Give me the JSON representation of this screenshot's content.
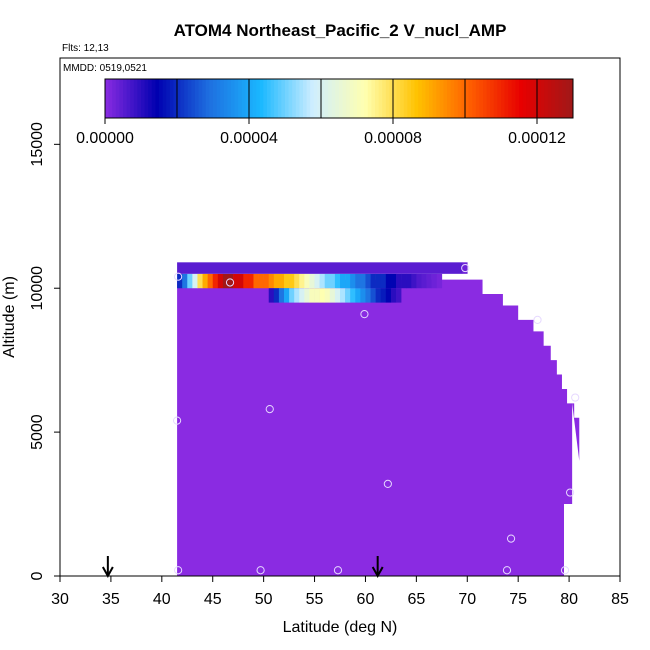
{
  "chart_data": {
    "type": "heatmap",
    "title": "ATOM4 Northeast_Pacific_2 V_nucl_AMP",
    "flights_label": "Flts: 12,13",
    "dates_label": "MMDD: 0519,0521",
    "xlabel": "Latitude (deg N)",
    "ylabel": "Altitude (m)",
    "xlim": [
      30,
      85
    ],
    "ylim": [
      0,
      18000
    ],
    "x_ticks": [
      "30",
      "35",
      "40",
      "45",
      "50",
      "55",
      "60",
      "65",
      "70",
      "75",
      "80",
      "85"
    ],
    "y_ticks": [
      "0",
      "5000",
      "10000",
      "15000"
    ],
    "colorbar": {
      "min": 0,
      "max": 0.00013,
      "tick_values": [
        0,
        4e-05,
        8e-05,
        0.00012
      ],
      "tick_labels": [
        "0.00000",
        "0.00004",
        "0.00008",
        "0.00012"
      ],
      "colors": [
        "#8a2be2",
        "#0000b0",
        "#1e6fe0",
        "#1ab8ff",
        "#cfeeff",
        "#ffffb0",
        "#ffc200",
        "#ff6000",
        "#e80000",
        "#a01818"
      ]
    },
    "background_value": 0,
    "background_color": "#8a2be2",
    "data_extent": {
      "lat_min": 41.5,
      "alt_top_by_lat": [
        [
          41.5,
          10300
        ],
        [
          70.5,
          10300
        ],
        [
          71.5,
          9800
        ],
        [
          73.5,
          9400
        ],
        [
          75,
          8900
        ],
        [
          76.5,
          8500
        ],
        [
          77.5,
          8000
        ],
        [
          78.2,
          7500
        ],
        [
          78.8,
          7000
        ],
        [
          79.3,
          6500
        ],
        [
          79.8,
          6000
        ],
        [
          80.5,
          5500
        ],
        [
          81,
          4000
        ]
      ],
      "lat_max_by_alt": [
        [
          0,
          79.5
        ],
        [
          2500,
          79.5
        ],
        [
          2500,
          80.3
        ],
        [
          6000,
          80.3
        ]
      ]
    },
    "high_bands": [
      {
        "alt_low": 10000,
        "alt_high": 10500,
        "cells": [
          [
            41.5,
            2e-05
          ],
          [
            42,
            3e-05
          ],
          [
            42.5,
            5e-05
          ],
          [
            43,
            6e-05
          ],
          [
            43.5,
            8e-05
          ],
          [
            44,
            9e-05
          ],
          [
            44.5,
            0.0001
          ],
          [
            45,
            0.00011
          ],
          [
            45.5,
            0.00012
          ],
          [
            46,
            0.00013
          ],
          [
            46.5,
            0.00013
          ],
          [
            47,
            0.00012
          ],
          [
            47.5,
            0.00012
          ],
          [
            48,
            0.00011
          ],
          [
            48.5,
            0.00011
          ],
          [
            49,
            0.0001
          ],
          [
            49.5,
            0.0001
          ],
          [
            50,
            0.0001
          ],
          [
            50.5,
            9.5e-05
          ],
          [
            51,
            9e-05
          ],
          [
            51.5,
            9e-05
          ],
          [
            52,
            8.5e-05
          ],
          [
            52.5,
            8.5e-05
          ],
          [
            53,
            8e-05
          ],
          [
            53.5,
            7.5e-05
          ],
          [
            54,
            7e-05
          ],
          [
            54.5,
            6.5e-05
          ],
          [
            55,
            6e-05
          ],
          [
            55.5,
            5.5e-05
          ],
          [
            56,
            5e-05
          ],
          [
            56.5,
            5e-05
          ],
          [
            57,
            4.5e-05
          ],
          [
            57.5,
            4e-05
          ],
          [
            58,
            4e-05
          ],
          [
            58.5,
            3.5e-05
          ],
          [
            59,
            3e-05
          ],
          [
            59.5,
            3e-05
          ],
          [
            60,
            2.5e-05
          ],
          [
            60.5,
            2e-05
          ],
          [
            61,
            2e-05
          ],
          [
            61.5,
            2e-05
          ],
          [
            62,
            1.5e-05
          ],
          [
            62.5,
            1.5e-05
          ],
          [
            63,
            1e-05
          ],
          [
            63.5,
            1e-05
          ],
          [
            64,
            1e-05
          ],
          [
            64.5,
            8e-06
          ],
          [
            65,
            6e-06
          ],
          [
            65.5,
            5e-06
          ],
          [
            66,
            4e-06
          ],
          [
            66.5,
            3e-06
          ],
          [
            67,
            2e-06
          ]
        ]
      },
      {
        "alt_low": 9500,
        "alt_high": 10000,
        "cells": [
          [
            50.5,
            1e-05
          ],
          [
            51,
            2e-05
          ],
          [
            51.5,
            3e-05
          ],
          [
            52,
            4e-05
          ],
          [
            52.5,
            5e-05
          ],
          [
            53,
            5.5e-05
          ],
          [
            53.5,
            6e-05
          ],
          [
            54,
            6.5e-05
          ],
          [
            54.5,
            7e-05
          ],
          [
            55,
            7e-05
          ],
          [
            55.5,
            7.2e-05
          ],
          [
            56,
            7e-05
          ],
          [
            56.5,
            6.5e-05
          ],
          [
            57,
            6e-05
          ],
          [
            57.5,
            5.5e-05
          ],
          [
            58,
            5e-05
          ],
          [
            58.5,
            4.5e-05
          ],
          [
            59,
            4e-05
          ],
          [
            59.5,
            3.5e-05
          ],
          [
            60,
            3e-05
          ],
          [
            60.5,
            2.5e-05
          ],
          [
            61,
            2e-05
          ],
          [
            61.5,
            1.8e-05
          ],
          [
            62,
            1.5e-05
          ],
          [
            62.5,
            1e-05
          ],
          [
            63,
            8e-06
          ]
        ]
      },
      {
        "alt_low": 10500,
        "alt_high": 10900,
        "cells": [
          [
            41.5,
            5e-06
          ],
          [
            69.5,
            3e-06
          ]
        ]
      }
    ],
    "sample_points": [
      [
        41.6,
        10400
      ],
      [
        46.7,
        10200
      ],
      [
        41.5,
        5400
      ],
      [
        41.6,
        200
      ],
      [
        49.7,
        200
      ],
      [
        50.6,
        5800
      ],
      [
        57.3,
        200
      ],
      [
        59.9,
        9100
      ],
      [
        62.2,
        3200
      ],
      [
        69.8,
        10700
      ],
      [
        73.9,
        200
      ],
      [
        74.3,
        1300
      ],
      [
        76.9,
        8900
      ],
      [
        79.6,
        200
      ],
      [
        80.1,
        2900
      ],
      [
        80.6,
        6200
      ]
    ],
    "arrows_lat": [
      34.7,
      61.2
    ]
  }
}
